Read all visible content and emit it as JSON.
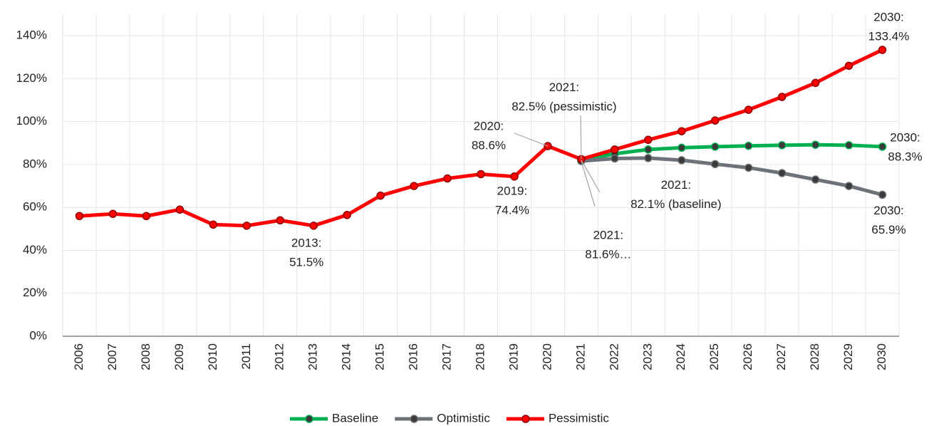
{
  "chart_data": {
    "type": "line",
    "categories": [
      "2006",
      "2007",
      "2008",
      "2009",
      "2010",
      "2011",
      "2012",
      "2013",
      "2014",
      "2015",
      "2016",
      "2017",
      "2018",
      "2019",
      "2020",
      "2021",
      "2022",
      "2023",
      "2024",
      "2025",
      "2026",
      "2027",
      "2028",
      "2029",
      "2030"
    ],
    "ylim": [
      0,
      150
    ],
    "yticks": [
      {
        "value": 0,
        "label": "0%"
      },
      {
        "value": 20,
        "label": "20%"
      },
      {
        "value": 40,
        "label": "40%"
      },
      {
        "value": 60,
        "label": "60%"
      },
      {
        "value": 80,
        "label": "80%"
      },
      {
        "value": 100,
        "label": "100%"
      },
      {
        "value": 120,
        "label": "120%"
      },
      {
        "value": 140,
        "label": "140%"
      }
    ],
    "grid": true,
    "legend": "bottom",
    "series": [
      {
        "name": "Baseline",
        "color": "#00b050",
        "values": [
          null,
          null,
          null,
          null,
          null,
          null,
          null,
          null,
          null,
          null,
          null,
          null,
          null,
          null,
          null,
          82.1,
          85,
          87,
          87.8,
          88.3,
          88.7,
          89,
          89.2,
          89,
          88.3
        ],
        "value_labels": [
          null,
          null,
          null,
          null,
          null,
          null,
          null,
          null,
          null,
          null,
          null,
          null,
          null,
          null,
          null,
          [
            "2021:",
            "82.1% (baseline)"
          ],
          null,
          null,
          null,
          null,
          null,
          null,
          null,
          null,
          [
            "2030:",
            "88.3%"
          ]
        ]
      },
      {
        "name": "Optimistic",
        "color": "#6d7278",
        "values": [
          null,
          null,
          null,
          null,
          null,
          null,
          null,
          null,
          null,
          null,
          null,
          null,
          null,
          null,
          null,
          81.6,
          82.8,
          83,
          82,
          80.2,
          78.5,
          76,
          73,
          70,
          65.9
        ],
        "value_labels": [
          null,
          null,
          null,
          null,
          null,
          null,
          null,
          null,
          null,
          null,
          null,
          null,
          null,
          null,
          null,
          [
            "2021:",
            "81.6%…"
          ],
          null,
          null,
          null,
          null,
          null,
          null,
          null,
          null,
          [
            "2030:",
            "65.9%"
          ]
        ]
      },
      {
        "name": "Pessimistic",
        "color": "#ff0000",
        "values": [
          56,
          57,
          56,
          59,
          52,
          51.5,
          54,
          51.5,
          56.5,
          65.5,
          70,
          73.5,
          75.5,
          74.4,
          88.6,
          82.5,
          87,
          91.5,
          95.5,
          100.5,
          105.5,
          111.5,
          118,
          126,
          133.4
        ],
        "value_labels": [
          null,
          null,
          null,
          null,
          null,
          null,
          null,
          [
            "2013:",
            "51.5%"
          ],
          null,
          null,
          null,
          null,
          null,
          [
            "2019:",
            "74.4%"
          ],
          [
            "2020:",
            "88.6%"
          ],
          [
            "2021:",
            "82.5% (pessimistic)"
          ],
          null,
          null,
          null,
          null,
          null,
          null,
          null,
          null,
          [
            "2030:",
            "133.4%"
          ]
        ]
      }
    ]
  }
}
